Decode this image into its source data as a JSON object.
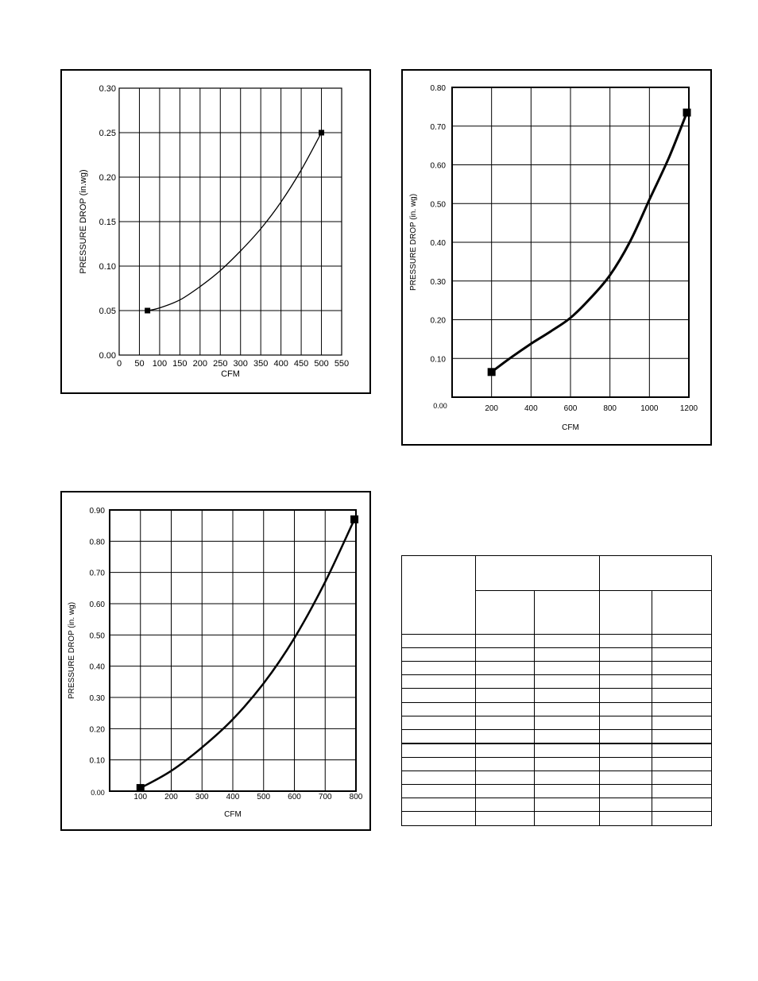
{
  "chart_data": [
    {
      "type": "line",
      "title": "",
      "xlabel": "CFM",
      "ylabel": "PRESSURE DROP (in.wg)",
      "xlim": [
        0,
        550
      ],
      "ylim": [
        0,
        0.3
      ],
      "x_ticks": [
        "0",
        "50",
        "100",
        "150",
        "200",
        "250",
        "300",
        "350",
        "400",
        "450",
        "500",
        "550"
      ],
      "y_ticks": [
        "0.00",
        "0.05",
        "0.10",
        "0.15",
        "0.20",
        "0.25",
        "0.30"
      ],
      "grid": true,
      "series": [
        {
          "x": [
            70,
            100,
            150,
            200,
            250,
            300,
            350,
            400,
            450,
            500
          ],
          "y": [
            0.05,
            0.053,
            0.062,
            0.077,
            0.095,
            0.117,
            0.142,
            0.172,
            0.208,
            0.25
          ]
        }
      ],
      "markers": [
        [
          70,
          0.05
        ],
        [
          500,
          0.25
        ]
      ]
    },
    {
      "type": "line",
      "title": "",
      "xlabel": "CFM",
      "ylabel": "PRESSURE DROP (in. wg)",
      "xlim": [
        0,
        1200
      ],
      "ylim": [
        0,
        0.8
      ],
      "x_ticks": [
        "200",
        "400",
        "600",
        "800",
        "1000",
        "1200"
      ],
      "y_ticks": [
        "0.10",
        "0.20",
        "0.30",
        "0.40",
        "0.50",
        "0.60",
        "0.70",
        "0.80"
      ],
      "origin_label": "0.00",
      "grid": true,
      "series": [
        {
          "x": [
            200,
            300,
            400,
            500,
            600,
            700,
            800,
            900,
            1000,
            1100,
            1190
          ],
          "y": [
            0.065,
            0.103,
            0.138,
            0.17,
            0.205,
            0.255,
            0.315,
            0.4,
            0.51,
            0.62,
            0.735
          ]
        }
      ],
      "markers": [
        [
          200,
          0.065
        ],
        [
          1190,
          0.735
        ]
      ]
    },
    {
      "type": "line",
      "title": "",
      "xlabel": "CFM",
      "ylabel": "PRESSURE DROP (in. wg)",
      "xlim": [
        0,
        800
      ],
      "ylim": [
        0,
        0.9
      ],
      "x_ticks": [
        "100",
        "200",
        "300",
        "400",
        "500",
        "600",
        "700",
        "800"
      ],
      "y_ticks": [
        "0.10",
        "0.20",
        "0.30",
        "0.40",
        "0.50",
        "0.60",
        "0.70",
        "0.80",
        "0.90"
      ],
      "origin_label": "0.00",
      "grid": true,
      "series": [
        {
          "x": [
            100,
            200,
            300,
            400,
            500,
            600,
            700,
            795
          ],
          "y": [
            0.01,
            0.065,
            0.14,
            0.23,
            0.345,
            0.49,
            0.67,
            0.87
          ]
        }
      ],
      "markers": [
        [
          100,
          0.01
        ],
        [
          795,
          0.87
        ]
      ]
    }
  ],
  "table": {
    "rows": 16,
    "cols": 5
  }
}
